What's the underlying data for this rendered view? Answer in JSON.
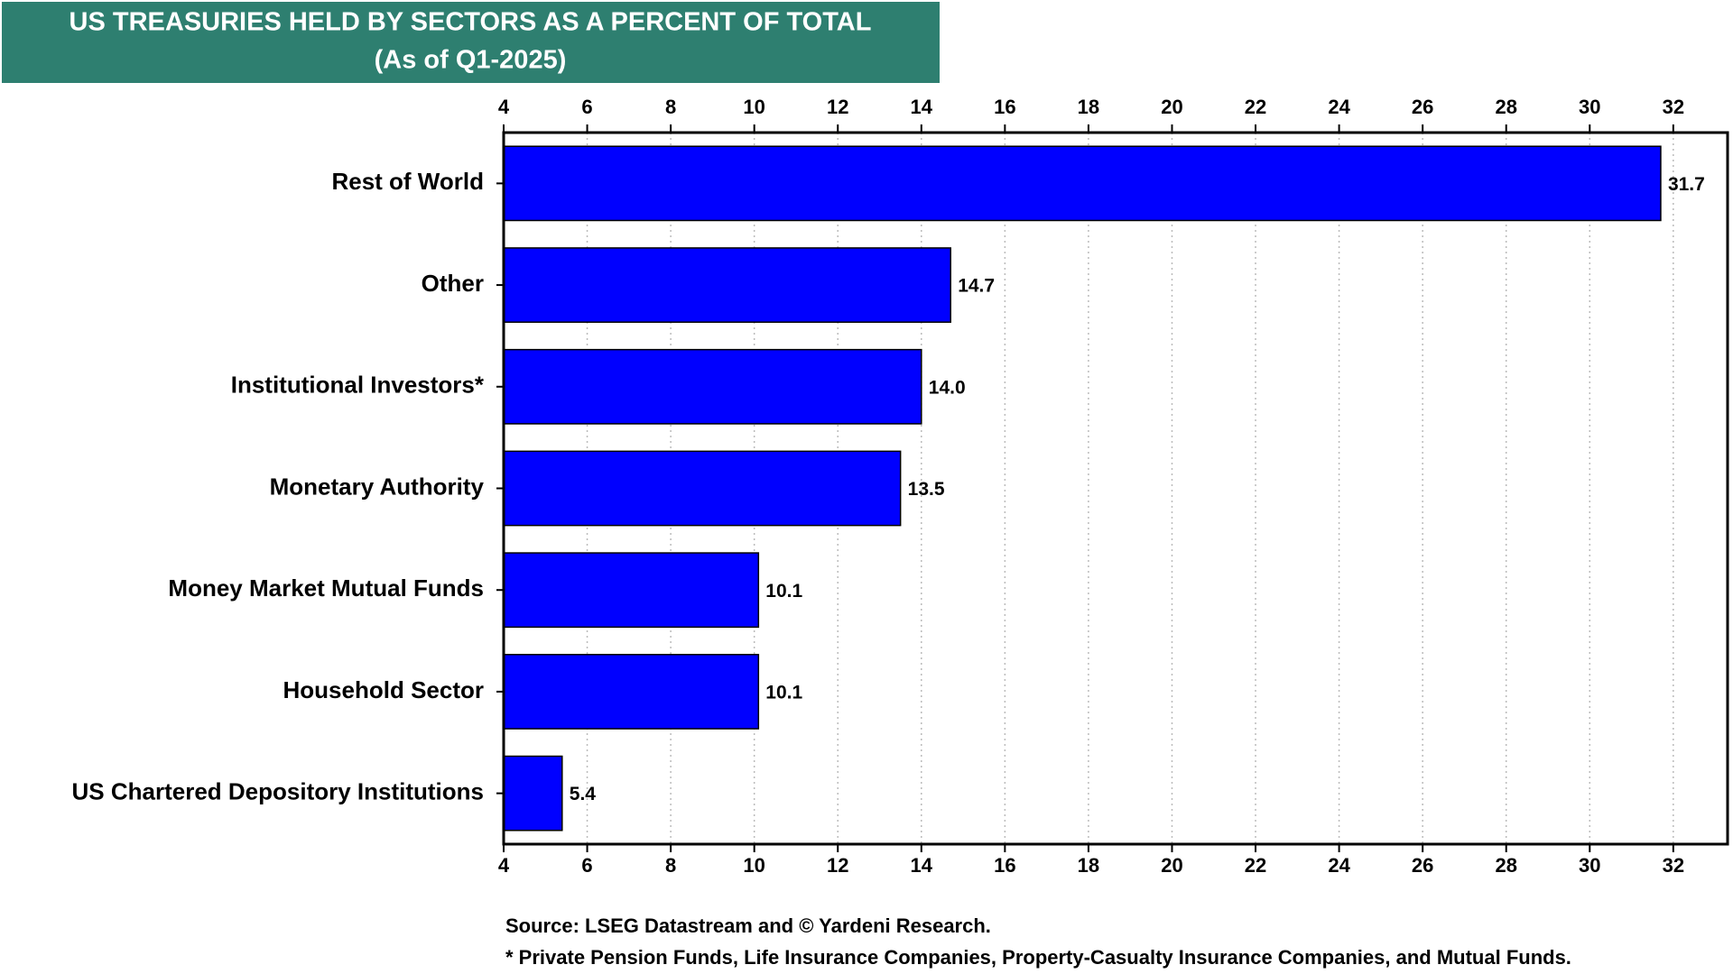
{
  "chart_data": {
    "type": "bar",
    "orientation": "horizontal",
    "title": "US TREASURIES HELD BY SECTORS AS A PERCENT OF TOTAL",
    "subtitle": "(As of Q1-2025)",
    "categories": [
      "Rest of World",
      "Other",
      "Institutional Investors*",
      "Monetary Authority",
      "Money Market Mutual Funds",
      "Household Sector",
      "US Chartered Depository Institutions"
    ],
    "values": [
      31.7,
      14.7,
      14.0,
      13.5,
      10.1,
      10.1,
      5.4
    ],
    "value_labels": [
      "31.7",
      "14.7",
      "14.0",
      "13.5",
      "10.1",
      "10.1",
      "5.4"
    ],
    "color": "#0000ff",
    "xlim": [
      4,
      33.3
    ],
    "xticks": [
      4,
      6,
      8,
      10,
      12,
      14,
      16,
      18,
      20,
      22,
      24,
      26,
      28,
      30,
      32
    ],
    "grid": true,
    "source": "Source: LSEG Datastream and © Yardeni Research.",
    "footnote": "* Private Pension Funds, Life Insurance Companies, Property-Casualty Insurance Companies, and Mutual Funds."
  }
}
